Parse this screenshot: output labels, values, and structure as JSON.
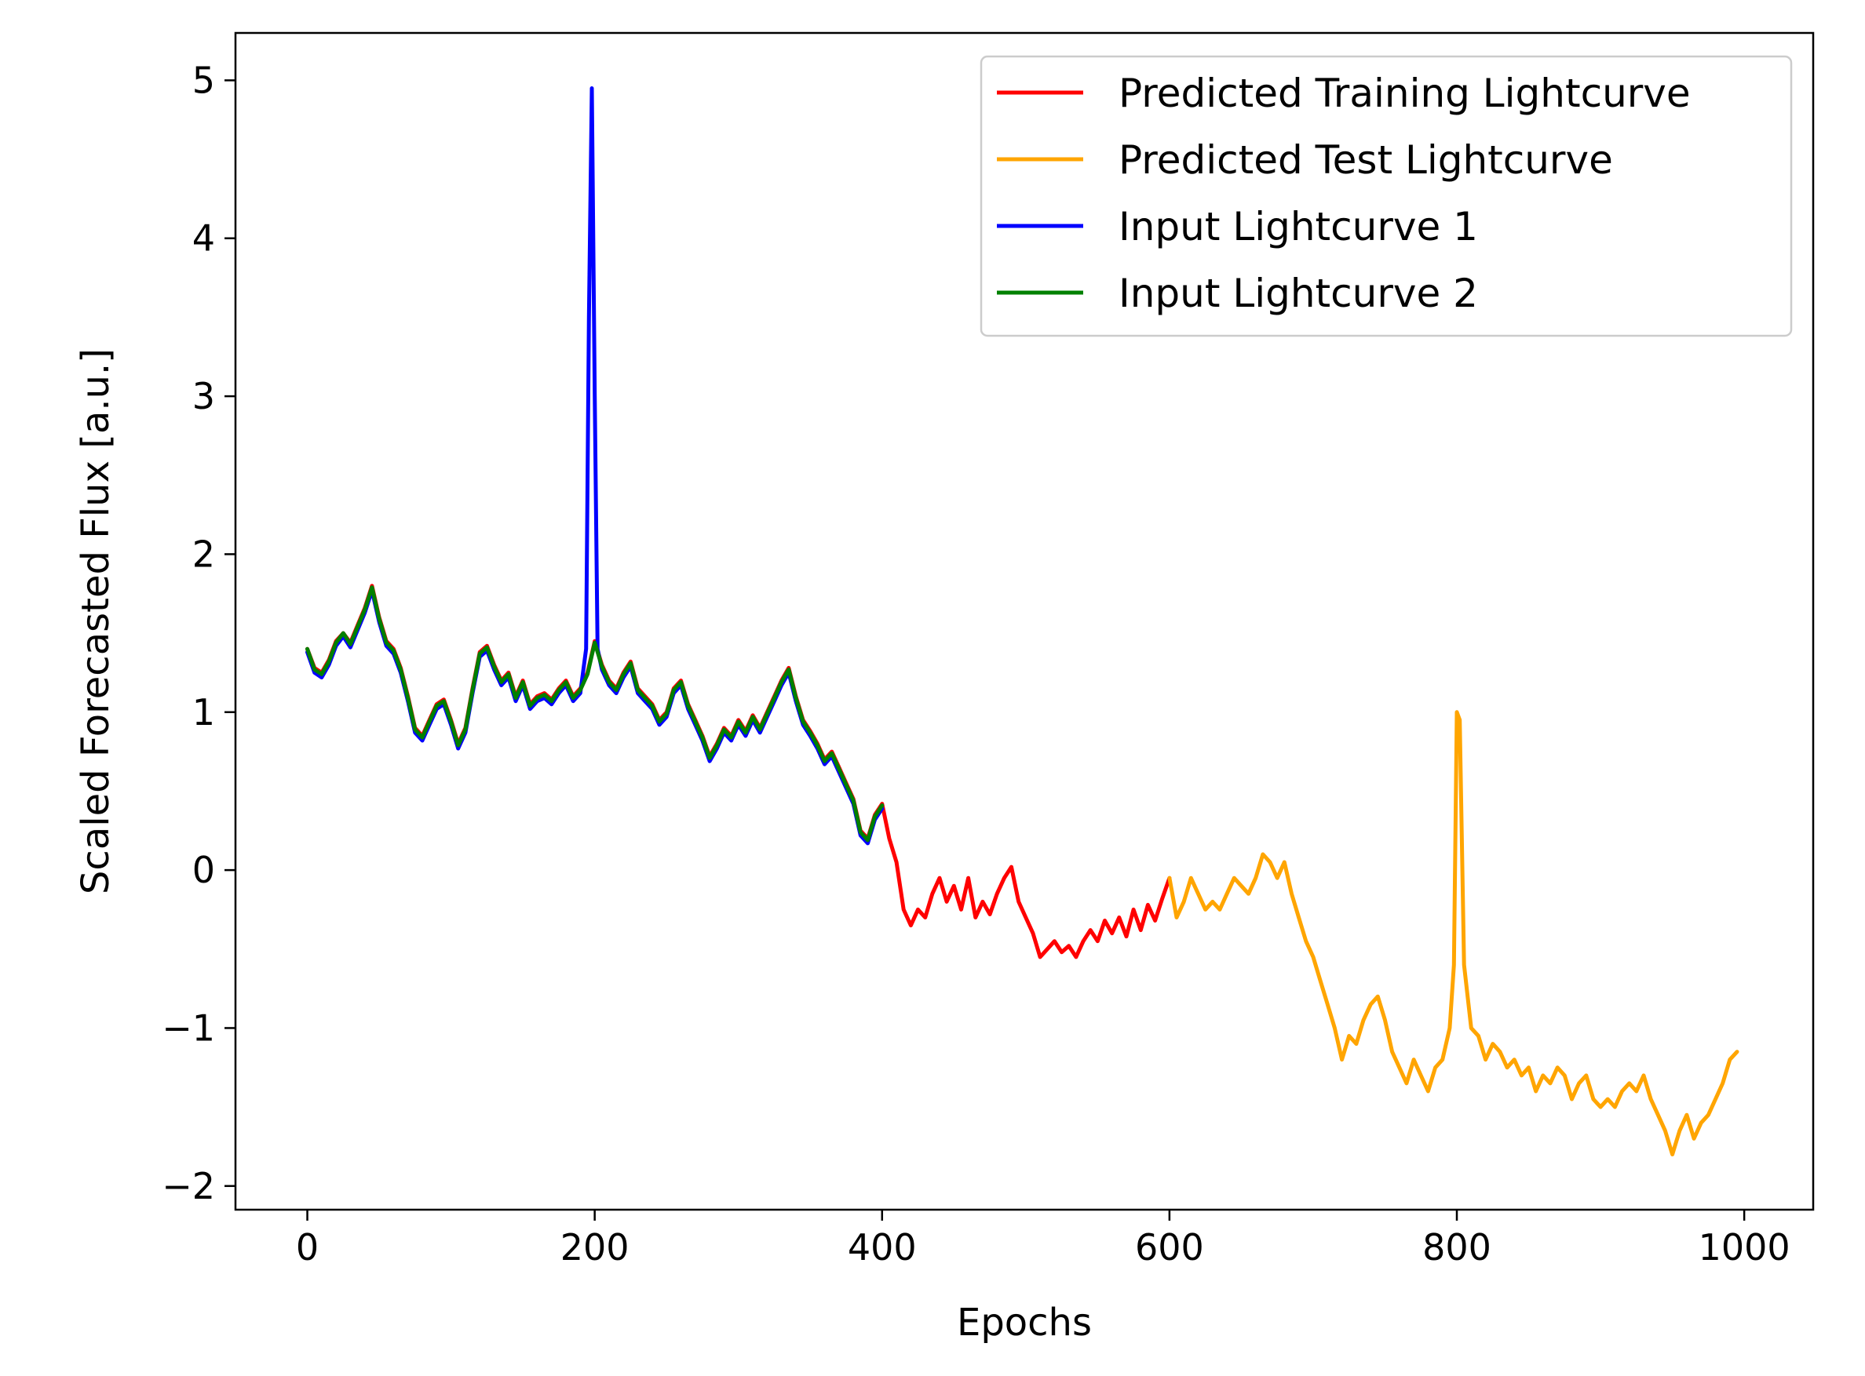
{
  "chart_data": {
    "type": "line",
    "title": "",
    "xlabel": "Epochs",
    "ylabel": "Scaled Forecasted Flux [a.u.]",
    "xlim": [
      -50,
      1048
    ],
    "ylim": [
      -2.15,
      5.3
    ],
    "xticks": [
      0,
      200,
      400,
      600,
      800,
      1000
    ],
    "xtick_labels": [
      "0",
      "200",
      "400",
      "600",
      "800",
      "1000"
    ],
    "yticks": [
      -2,
      -1,
      0,
      1,
      2,
      3,
      4,
      5
    ],
    "ytick_labels": [
      "−2",
      "−1",
      "0",
      "1",
      "2",
      "3",
      "4",
      "5"
    ],
    "grid": false,
    "legend_position": "top-right",
    "series": [
      {
        "name": "Predicted Training Lightcurve",
        "color": "#ff0000",
        "x": [
          0,
          5,
          10,
          15,
          20,
          25,
          30,
          35,
          40,
          45,
          50,
          55,
          60,
          65,
          70,
          75,
          80,
          85,
          90,
          95,
          100,
          105,
          110,
          115,
          120,
          125,
          130,
          135,
          140,
          145,
          150,
          155,
          160,
          165,
          170,
          175,
          180,
          185,
          190,
          195,
          200,
          205,
          210,
          215,
          220,
          225,
          230,
          235,
          240,
          245,
          250,
          255,
          260,
          265,
          270,
          275,
          280,
          285,
          290,
          295,
          300,
          305,
          310,
          315,
          320,
          325,
          330,
          335,
          340,
          345,
          350,
          355,
          360,
          365,
          370,
          375,
          380,
          385,
          390,
          395,
          400,
          405,
          410,
          415,
          420,
          425,
          430,
          435,
          440,
          445,
          450,
          455,
          460,
          465,
          470,
          475,
          480,
          485,
          490,
          495,
          500,
          505,
          510,
          515,
          520,
          525,
          530,
          535,
          540,
          545,
          550,
          555,
          560,
          565,
          570,
          575,
          580,
          585,
          590,
          595,
          600
        ],
        "y": [
          1.4,
          1.28,
          1.25,
          1.33,
          1.45,
          1.5,
          1.44,
          1.55,
          1.66,
          1.8,
          1.6,
          1.45,
          1.4,
          1.28,
          1.1,
          0.9,
          0.85,
          0.95,
          1.05,
          1.08,
          0.95,
          0.8,
          0.9,
          1.15,
          1.38,
          1.42,
          1.3,
          1.2,
          1.25,
          1.1,
          1.2,
          1.05,
          1.1,
          1.12,
          1.08,
          1.15,
          1.2,
          1.1,
          1.15,
          1.25,
          1.45,
          1.3,
          1.2,
          1.15,
          1.25,
          1.32,
          1.15,
          1.1,
          1.05,
          0.95,
          1.0,
          1.15,
          1.2,
          1.05,
          0.95,
          0.85,
          0.72,
          0.8,
          0.9,
          0.85,
          0.95,
          0.88,
          0.98,
          0.9,
          1.0,
          1.1,
          1.2,
          1.28,
          1.1,
          0.95,
          0.88,
          0.8,
          0.7,
          0.75,
          0.65,
          0.55,
          0.45,
          0.25,
          0.2,
          0.35,
          0.42,
          0.2,
          0.05,
          -0.25,
          -0.35,
          -0.25,
          -0.3,
          -0.15,
          -0.05,
          -0.2,
          -0.1,
          -0.25,
          -0.05,
          -0.3,
          -0.2,
          -0.28,
          -0.15,
          -0.05,
          0.02,
          -0.2,
          -0.3,
          -0.4,
          -0.55,
          -0.5,
          -0.45,
          -0.52,
          -0.48,
          -0.55,
          -0.45,
          -0.38,
          -0.45,
          -0.32,
          -0.4,
          -0.3,
          -0.42,
          -0.25,
          -0.38,
          -0.22,
          -0.32,
          -0.18,
          -0.05
        ]
      },
      {
        "name": "Predicted Test Lightcurve",
        "color": "#ffa500",
        "x": [
          600,
          605,
          610,
          615,
          620,
          625,
          630,
          635,
          640,
          645,
          650,
          655,
          660,
          665,
          670,
          675,
          680,
          685,
          690,
          695,
          700,
          705,
          710,
          715,
          720,
          725,
          730,
          735,
          740,
          745,
          750,
          755,
          760,
          765,
          770,
          775,
          780,
          785,
          790,
          795,
          798,
          800,
          802,
          805,
          810,
          815,
          820,
          825,
          830,
          835,
          840,
          845,
          850,
          855,
          860,
          865,
          870,
          875,
          880,
          885,
          890,
          895,
          900,
          905,
          910,
          915,
          920,
          925,
          930,
          935,
          940,
          945,
          950,
          955,
          960,
          965,
          970,
          975,
          980,
          985,
          990,
          995
        ],
        "y": [
          -0.05,
          -0.3,
          -0.2,
          -0.05,
          -0.15,
          -0.25,
          -0.2,
          -0.25,
          -0.15,
          -0.05,
          -0.1,
          -0.15,
          -0.05,
          0.1,
          0.05,
          -0.05,
          0.05,
          -0.15,
          -0.3,
          -0.45,
          -0.55,
          -0.7,
          -0.85,
          -1.0,
          -1.2,
          -1.05,
          -1.1,
          -0.95,
          -0.85,
          -0.8,
          -0.95,
          -1.15,
          -1.25,
          -1.35,
          -1.2,
          -1.3,
          -1.4,
          -1.25,
          -1.2,
          -1.0,
          -0.6,
          1.0,
          0.95,
          -0.6,
          -1.0,
          -1.05,
          -1.2,
          -1.1,
          -1.15,
          -1.25,
          -1.2,
          -1.3,
          -1.25,
          -1.4,
          -1.3,
          -1.35,
          -1.25,
          -1.3,
          -1.45,
          -1.35,
          -1.3,
          -1.45,
          -1.5,
          -1.45,
          -1.5,
          -1.4,
          -1.35,
          -1.4,
          -1.3,
          -1.45,
          -1.55,
          -1.65,
          -1.8,
          -1.65,
          -1.55,
          -1.7,
          -1.6,
          -1.55,
          -1.45,
          -1.35,
          -1.2,
          -1.15
        ]
      },
      {
        "name": "Input Lightcurve 1",
        "color": "#0000ff",
        "x": [
          0,
          5,
          10,
          15,
          20,
          25,
          30,
          35,
          40,
          45,
          50,
          55,
          60,
          65,
          70,
          75,
          80,
          85,
          90,
          95,
          100,
          105,
          110,
          115,
          120,
          125,
          130,
          135,
          140,
          145,
          150,
          155,
          160,
          165,
          170,
          175,
          180,
          185,
          190,
          194,
          196,
          198,
          200,
          202,
          205,
          210,
          215,
          220,
          225,
          230,
          235,
          240,
          245,
          250,
          255,
          260,
          265,
          270,
          275,
          280,
          285,
          290,
          295,
          300,
          305,
          310,
          315,
          320,
          325,
          330,
          335,
          340,
          345,
          350,
          355,
          360,
          365,
          370,
          375,
          380,
          385,
          390,
          395,
          400
        ],
        "y": [
          1.38,
          1.25,
          1.22,
          1.3,
          1.42,
          1.48,
          1.41,
          1.52,
          1.63,
          1.77,
          1.57,
          1.42,
          1.37,
          1.25,
          1.07,
          0.87,
          0.82,
          0.92,
          1.02,
          1.05,
          0.92,
          0.77,
          0.87,
          1.12,
          1.35,
          1.39,
          1.27,
          1.17,
          1.22,
          1.07,
          1.17,
          1.02,
          1.07,
          1.09,
          1.05,
          1.12,
          1.17,
          1.07,
          1.12,
          1.4,
          3.5,
          4.95,
          3.0,
          1.4,
          1.27,
          1.17,
          1.12,
          1.22,
          1.29,
          1.12,
          1.07,
          1.02,
          0.92,
          0.97,
          1.12,
          1.17,
          1.02,
          0.92,
          0.82,
          0.69,
          0.77,
          0.87,
          0.82,
          0.92,
          0.85,
          0.95,
          0.87,
          0.97,
          1.07,
          1.17,
          1.25,
          1.07,
          0.92,
          0.85,
          0.77,
          0.67,
          0.72,
          0.62,
          0.52,
          0.42,
          0.22,
          0.17,
          0.32,
          0.39
        ]
      },
      {
        "name": "Input Lightcurve 2",
        "color": "#008000",
        "x": [
          0,
          5,
          10,
          15,
          20,
          25,
          30,
          35,
          40,
          45,
          50,
          55,
          60,
          65,
          70,
          75,
          80,
          85,
          90,
          95,
          100,
          105,
          110,
          115,
          120,
          125,
          130,
          135,
          140,
          145,
          150,
          155,
          160,
          165,
          170,
          175,
          180,
          185,
          190,
          195,
          200,
          205,
          210,
          215,
          220,
          225,
          230,
          235,
          240,
          245,
          250,
          255,
          260,
          265,
          270,
          275,
          280,
          285,
          290,
          295,
          300,
          305,
          310,
          315,
          320,
          325,
          330,
          335,
          340,
          345,
          350,
          355,
          360,
          365,
          370,
          375,
          380,
          385,
          390,
          395,
          400
        ],
        "y": [
          1.4,
          1.27,
          1.24,
          1.32,
          1.44,
          1.5,
          1.43,
          1.54,
          1.65,
          1.79,
          1.59,
          1.44,
          1.39,
          1.27,
          1.09,
          0.89,
          0.84,
          0.94,
          1.04,
          1.07,
          0.94,
          0.79,
          0.89,
          1.14,
          1.37,
          1.41,
          1.29,
          1.19,
          1.24,
          1.09,
          1.19,
          1.04,
          1.09,
          1.11,
          1.07,
          1.14,
          1.19,
          1.09,
          1.14,
          1.24,
          1.44,
          1.29,
          1.19,
          1.14,
          1.24,
          1.31,
          1.14,
          1.09,
          1.04,
          0.94,
          0.99,
          1.14,
          1.19,
          1.04,
          0.94,
          0.84,
          0.71,
          0.79,
          0.89,
          0.84,
          0.94,
          0.87,
          0.97,
          0.89,
          0.99,
          1.09,
          1.19,
          1.27,
          1.09,
          0.94,
          0.87,
          0.79,
          0.69,
          0.74,
          0.64,
          0.54,
          0.44,
          0.24,
          0.19,
          0.34,
          0.41
        ]
      }
    ]
  }
}
